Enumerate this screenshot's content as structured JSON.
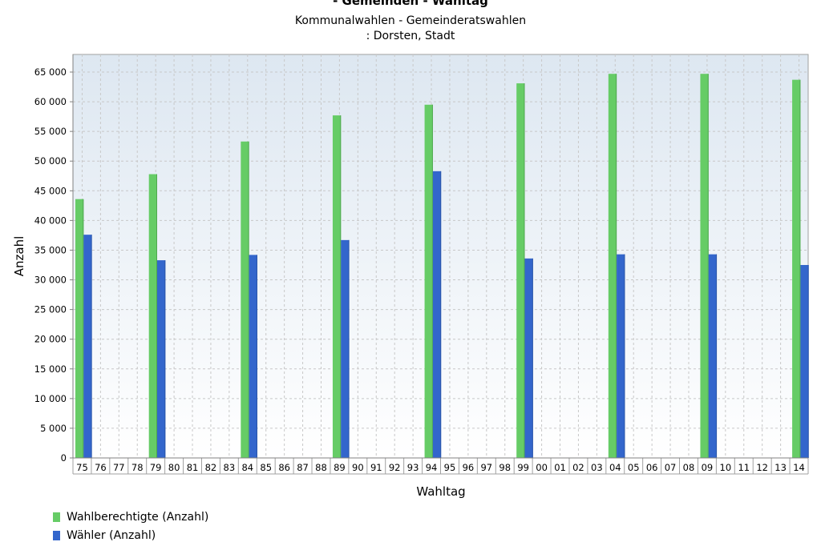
{
  "chart_data": {
    "type": "bar",
    "title": "- Gemeinden - Wahltag",
    "subtitle_lines": [
      "Kommunalwahlen - Gemeinderatswahlen",
      ": Dorsten, Stadt"
    ],
    "xlabel": "Wahltag",
    "ylabel": "Anzahl",
    "ylim": [
      0,
      65000
    ],
    "yticks": [
      0,
      5000,
      10000,
      15000,
      20000,
      25000,
      30000,
      35000,
      40000,
      45000,
      50000,
      55000,
      60000,
      65000
    ],
    "ytick_labels": [
      "0",
      "5 000",
      "10 000",
      "15 000",
      "20 000",
      "25 000",
      "30 000",
      "35 000",
      "40 000",
      "45 000",
      "50 000",
      "55 000",
      "60 000",
      "65 000"
    ],
    "categories": [
      "75",
      "76",
      "77",
      "78",
      "79",
      "80",
      "81",
      "82",
      "83",
      "84",
      "85",
      "86",
      "87",
      "88",
      "89",
      "90",
      "91",
      "92",
      "93",
      "94",
      "95",
      "96",
      "97",
      "98",
      "99",
      "00",
      "01",
      "02",
      "03",
      "04",
      "05",
      "06",
      "07",
      "08",
      "09",
      "10",
      "11",
      "12",
      "13",
      "14"
    ],
    "series": [
      {
        "name": "Wahlberechtigte (Anzahl)",
        "color": "#66cc66",
        "values": [
          43600,
          null,
          null,
          null,
          47800,
          null,
          null,
          null,
          null,
          53300,
          null,
          null,
          null,
          null,
          57700,
          null,
          null,
          null,
          null,
          59500,
          null,
          null,
          null,
          null,
          63100,
          null,
          null,
          null,
          null,
          64700,
          null,
          null,
          null,
          null,
          64700,
          null,
          null,
          null,
          null,
          63700
        ]
      },
      {
        "name": "Wähler (Anzahl)",
        "color": "#3366cc",
        "values": [
          37600,
          null,
          null,
          null,
          33300,
          null,
          null,
          null,
          null,
          34200,
          null,
          null,
          null,
          null,
          36700,
          null,
          null,
          null,
          null,
          48300,
          null,
          null,
          null,
          null,
          33600,
          null,
          null,
          null,
          null,
          34300,
          null,
          null,
          null,
          null,
          34300,
          null,
          null,
          null,
          null,
          32500
        ]
      }
    ],
    "grid": true,
    "legend_position": "bottom-left"
  }
}
